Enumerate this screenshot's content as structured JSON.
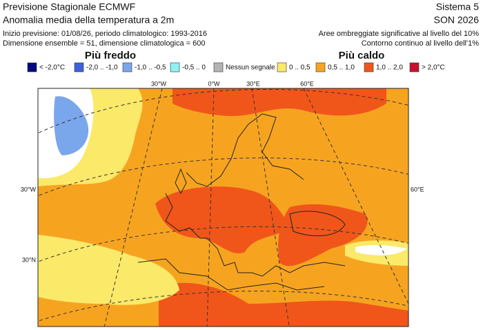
{
  "header": {
    "title": "Previsione Stagionale ECMWF",
    "subtitle": "Anomalia media della temperatura a 2m",
    "info1": "Inizio previsione: 01/08/26, periodo climatologico: 1993-2016",
    "info2": "Dimensione ensemble = 51, dimensione climatologica = 600",
    "system": "Sistema 5",
    "season": "SON 2026",
    "note1": "Aree ombreggiate significative al livello del 10%",
    "note2": "Contorno continuo al livello dell'1%"
  },
  "legend": {
    "colder": "Più freddo",
    "warmer": "Più caldo",
    "items": [
      {
        "label": "< -2,0°C",
        "color": "#000a80"
      },
      {
        "label": "-2,0 .. -1,0",
        "color": "#3c62dc"
      },
      {
        "label": "-1,0 .. -0,5",
        "color": "#7aa6ec"
      },
      {
        "label": "-0,5 .. 0",
        "color": "#8ef2f4"
      },
      {
        "label": "Nessun segnale",
        "color": "#b4b4b4"
      },
      {
        "label": "0 .. 0,5",
        "color": "#fbe96a"
      },
      {
        "label": "0,5 .. 1,0",
        "color": "#f6a420"
      },
      {
        "label": "1,0 .. 2,0",
        "color": "#f0561a"
      },
      {
        "label": "> 2,0°C",
        "color": "#c8102e"
      }
    ]
  },
  "map": {
    "lon_labels": [
      "30°W",
      "0°W",
      "30°E",
      "60°E"
    ],
    "left_label": "30°W",
    "right_label": "60°E",
    "lat_label": "30°N"
  }
}
